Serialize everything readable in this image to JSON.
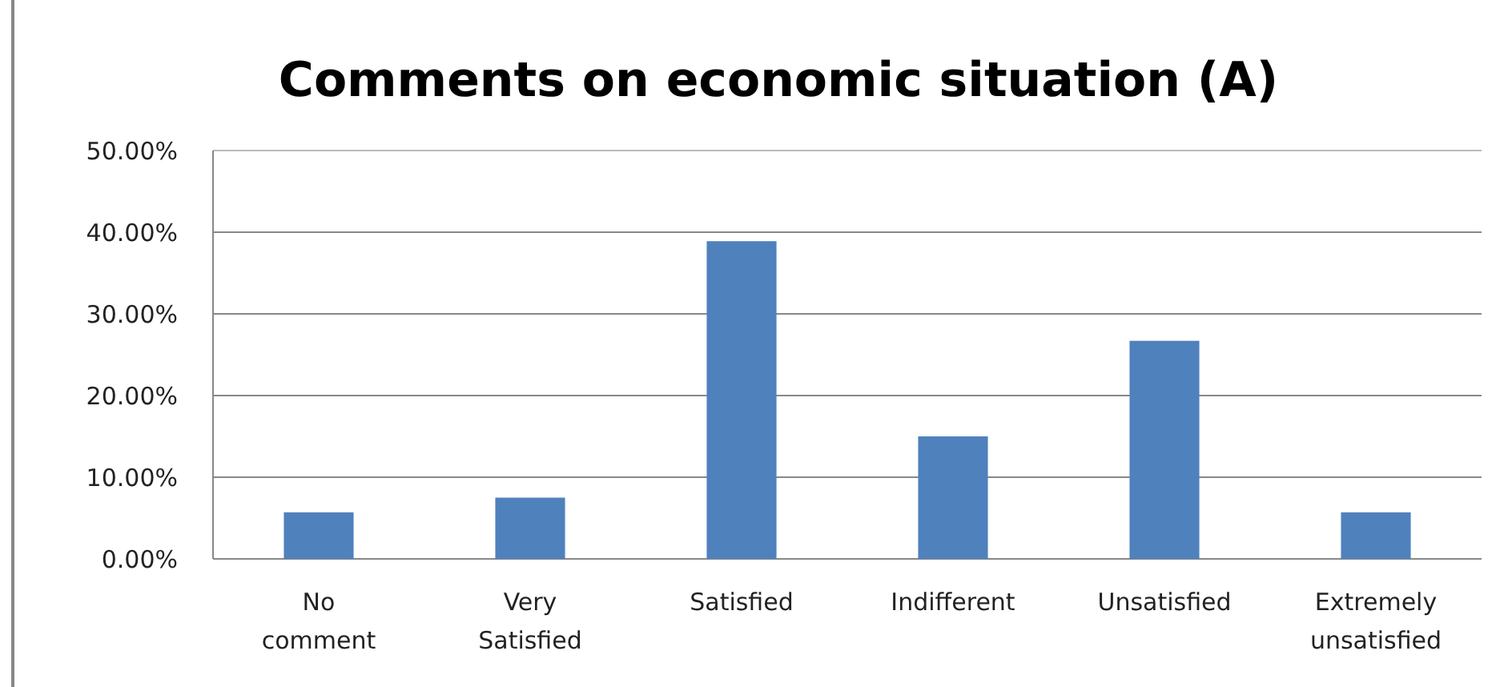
{
  "chart_data": {
    "type": "bar",
    "title": "Comments on economic situation (A)",
    "categories": [
      "No comment",
      "Very Satisfied",
      "Satisfied",
      "Indifferent",
      "Unsatisfied",
      "Extremely unsatisfied"
    ],
    "values": [
      5.7,
      7.5,
      38.9,
      15.0,
      26.7,
      5.7
    ],
    "color": "#4f81bd",
    "ylim": [
      0,
      50
    ],
    "yticks": [
      {
        "value": 0,
        "label": "0.00%"
      },
      {
        "value": 10,
        "label": "10.00%"
      },
      {
        "value": 20,
        "label": "20.00%"
      },
      {
        "value": 30,
        "label": "30.00%"
      },
      {
        "value": 40,
        "label": "40.00%"
      },
      {
        "value": 50,
        "label": "50.00%"
      }
    ],
    "grid": "y"
  }
}
